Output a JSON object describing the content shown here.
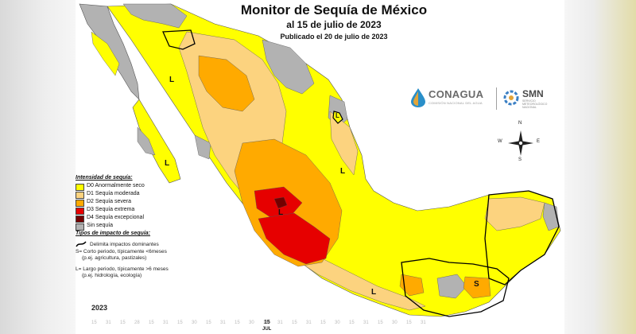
{
  "map": {
    "title": "Monitor de Sequía de México",
    "subtitle": "al 15 de julio de 2023",
    "published": "Publicado el 20 de julio de 2023"
  },
  "logos": {
    "conagua": "CONAGUA",
    "conagua_sub": "COMISIÓN NACIONAL DEL AGUA",
    "smn": "SMN",
    "smn_sub": "SERVICIO METEOROLÓGICO NACIONAL"
  },
  "compass": {
    "n": "N",
    "s": "S",
    "e": "E",
    "w": "W"
  },
  "legend": {
    "title": "Intensidad de sequía:",
    "items": [
      {
        "code": "D0",
        "label": "D0 Anormalmente seco",
        "color": "#ffff00"
      },
      {
        "code": "D1",
        "label": "D1 Sequía moderada",
        "color": "#fcd37f"
      },
      {
        "code": "D2",
        "label": "D2 Sequía severa",
        "color": "#ffaa00"
      },
      {
        "code": "D3",
        "label": "D3 Sequía extrema",
        "color": "#e60000"
      },
      {
        "code": "D4",
        "label": "D4 Sequía excepcional",
        "color": "#730000"
      },
      {
        "code": "none",
        "label": "Sin sequía",
        "color": "#b2b2b2"
      }
    ],
    "impact_title": "Tipos de impacto de sequía:",
    "impact_line": "Delimita impactos dominantes",
    "impact_s": "S= Corto periodo, típicamente <6meses",
    "impact_s_ex": "(p.ej. agricultura, pastizales)",
    "impact_l": "L= Largo periodo, típicamente >6 meses",
    "impact_l_ex": "(p.ej. hidrología, ecología)"
  },
  "map_labels": [
    "L",
    "L",
    "L",
    "L",
    "L",
    "L",
    "S"
  ],
  "timeline": {
    "year": "2023",
    "day_labels": [
      "15",
      "31",
      "15",
      "28",
      "15",
      "31",
      "15",
      "30",
      "15",
      "31",
      "15",
      "30",
      "15",
      "31",
      "15",
      "31",
      "15",
      "30",
      "15",
      "31",
      "15",
      "30",
      "15",
      "31"
    ],
    "current_day": "15",
    "current_month": "JUL"
  }
}
